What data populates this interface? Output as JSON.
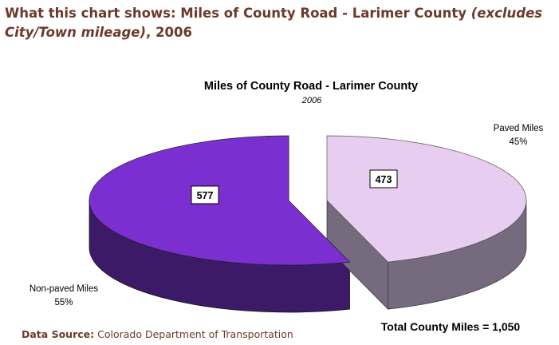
{
  "heading": {
    "prefix": "What this chart shows: Miles of County Road - Larimer County ",
    "italic": "(excludes City/Town mileage)",
    "suffix": ", 2006"
  },
  "colors": {
    "heading": "#6b3a2a",
    "unpaved_top": "#7b2fd0",
    "unpaved_side": "#3c1a68",
    "paved_top": "#e7cdf0",
    "paved_side": "#756a7e"
  },
  "chart_data": {
    "type": "pie",
    "style": "3d-exploded",
    "title": "Miles of County Road - Larimer County",
    "subtitle": "2006",
    "slices": [
      {
        "name": "Paved Miles",
        "value": 473,
        "percent_label": "45%",
        "color": "#e7cdf0",
        "side_color": "#756a7e"
      },
      {
        "name": "Non-paved Miles",
        "value": 577,
        "percent_label": "55%",
        "color": "#7b2fd0",
        "side_color": "#3c1a68"
      }
    ],
    "total_label": "Total County Miles = 1,050"
  },
  "source": {
    "label": "Data Source:",
    "text": "Colorado Department of Transportation"
  }
}
